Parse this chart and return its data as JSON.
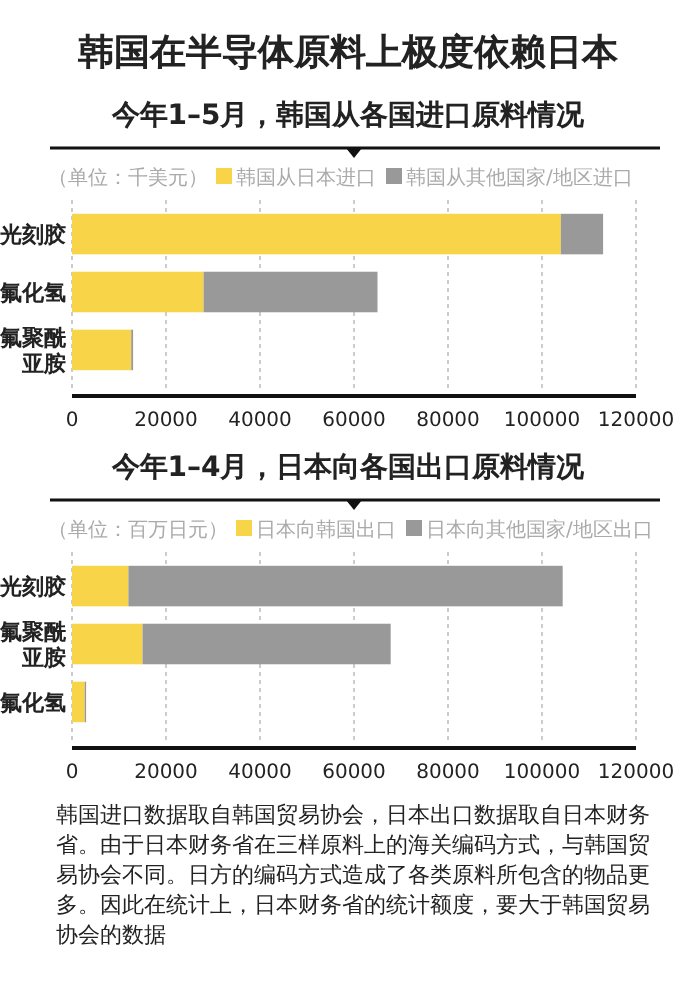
{
  "chart_data": [
    {
      "type": "bar",
      "orientation": "horizontal",
      "stacked": true,
      "title": "韩国在半导体原料上极度依赖日本",
      "subtitle": "今年1–5月，韩国从各国进口原料情况",
      "legend_title": "（单位：千美元）",
      "legend": "top",
      "grid": "x",
      "categories": [
        "光刻胶",
        "氟化氢",
        "氟聚酰亚胺"
      ],
      "series": [
        {
          "name": "韩国从日本进口",
          "color": "#f8d548",
          "values": [
            104000,
            28000,
            12600
          ]
        },
        {
          "name": "韩国从其他国家/地区进口",
          "color": "#999999",
          "values": [
            9000,
            37000,
            400
          ]
        }
      ],
      "xlim": [
        0,
        120000
      ],
      "xticks": [
        0,
        20000,
        40000,
        60000,
        80000,
        100000,
        120000
      ]
    },
    {
      "type": "bar",
      "orientation": "horizontal",
      "stacked": true,
      "title": "今年1–4月，日本向各国出口原料情况",
      "legend_title": "（单位：百万日元）",
      "legend": "top",
      "grid": "x",
      "categories": [
        "光刻胶",
        "氟聚酰亚胺",
        "氟化氢"
      ],
      "series": [
        {
          "name": "日本向韩国出口",
          "color": "#f8d548",
          "values": [
            12000,
            15000,
            2700
          ]
        },
        {
          "name": "日本向其他国家/地区出口",
          "color": "#999999",
          "values": [
            92400,
            52800,
            300
          ]
        }
      ],
      "xlim": [
        0,
        120000
      ],
      "xticks": [
        0,
        20000,
        40000,
        60000,
        80000,
        100000,
        120000
      ],
      "annotations": [
        "韩国进口数据取自韩国贸易协会，日本出口数据取自日本财务省。由于日本财务省在三样原料上的海关编码方式，与韩国贸易协会不同。日方的编码方式造成了各类原料所包含的物品更多。因此在统计上，日本财务省的统计额度，要大于韩国贸易协会的数据"
      ]
    }
  ]
}
